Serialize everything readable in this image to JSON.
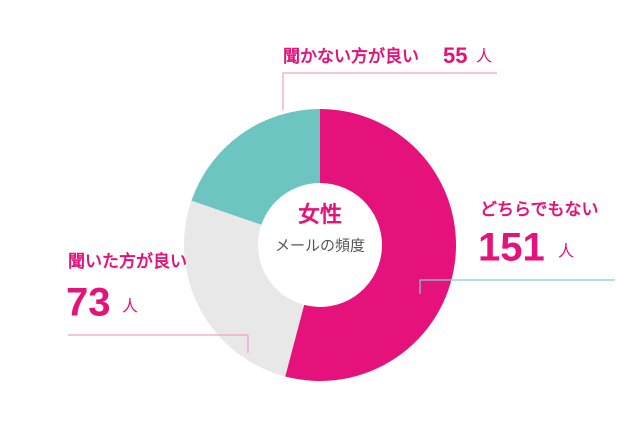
{
  "chart_data": {
    "type": "donut",
    "title": "女性",
    "subtitle": "メールの頻度",
    "unit": "人",
    "categories": [
      "どちらでもない",
      "聞いた方が良い",
      "聞かない方が良い"
    ],
    "values": [
      151,
      73,
      55
    ],
    "colors": [
      "#e4127a",
      "#e8e8e8",
      "#6cc5c0"
    ]
  }
}
